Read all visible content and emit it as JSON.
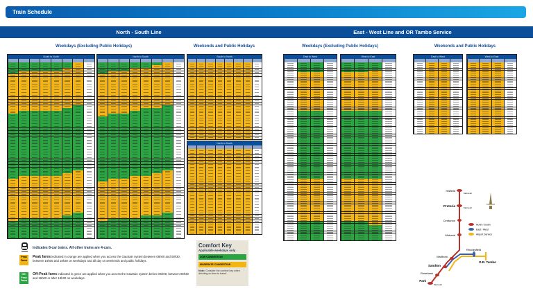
{
  "title": "Train Schedule",
  "lines": {
    "ns": "North - South Line",
    "ew": "East - West Line and OR Tambo Service"
  },
  "subheads": {
    "ns_weekdays": "Weekdays (Excluding Public Holidays)",
    "ns_weekends": "Weekends and Public Holidays",
    "ew_weekdays": "Weekdays (Excluding Public Holidays)",
    "ew_weekends": "Weekends and Public Holidays"
  },
  "colors": {
    "peak": "#f3b416",
    "offpeak": "#2aa542",
    "header": "#0b4f9b"
  },
  "tables": [
    {
      "id": "ns-wd-sn",
      "title": "South to North",
      "cols": 8,
      "rows": 62,
      "first": "g",
      "last": "w",
      "peaks": [
        [
          [
            4,
            18
          ],
          [
            41,
            56
          ]
        ],
        [
          [
            3,
            17
          ],
          [
            40,
            55
          ]
        ],
        [
          [
            3,
            17
          ],
          [
            40,
            55
          ]
        ],
        [
          [
            3,
            17
          ],
          [
            40,
            55
          ]
        ],
        [
          [
            3,
            17
          ],
          [
            40,
            55
          ]
        ],
        [
          [
            2,
            16
          ],
          [
            39,
            54
          ]
        ],
        [
          [
            0,
            15
          ],
          [
            38,
            53
          ]
        ],
        []
      ]
    },
    {
      "id": "ns-wd-ns",
      "title": "North to South",
      "cols": 8,
      "rows": 62,
      "first": "g",
      "last": "w",
      "peaks": [
        [
          [
            4,
            19
          ],
          [
            42,
            56
          ]
        ],
        [
          [
            3,
            18
          ],
          [
            41,
            55
          ]
        ],
        [
          [
            3,
            18
          ],
          [
            41,
            55
          ]
        ],
        [
          [
            2,
            17
          ],
          [
            40,
            55
          ]
        ],
        [
          [
            2,
            16
          ],
          [
            40,
            54
          ]
        ],
        [
          [
            1,
            16
          ],
          [
            39,
            54
          ]
        ],
        [
          [
            0,
            15
          ],
          [
            38,
            53
          ]
        ],
        []
      ]
    },
    {
      "id": "ns-we-sn",
      "title": "South to North",
      "cols": 8,
      "rows": 27,
      "first": "o",
      "last": "w",
      "peaks": [
        [
          [
            0,
            27
          ]
        ],
        [
          [
            0,
            27
          ]
        ],
        [
          [
            0,
            27
          ]
        ],
        [
          [
            0,
            27
          ]
        ],
        [
          [
            0,
            27
          ]
        ],
        [
          [
            0,
            27
          ]
        ],
        [
          [
            0,
            27
          ]
        ],
        []
      ]
    },
    {
      "id": "ns-we-ns",
      "title": "North to South",
      "cols": 8,
      "rows": 30,
      "first": "o",
      "last": "w",
      "peaks": [
        [
          [
            0,
            30
          ]
        ],
        [
          [
            0,
            30
          ]
        ],
        [
          [
            0,
            30
          ]
        ],
        [
          [
            0,
            30
          ]
        ],
        [
          [
            0,
            30
          ]
        ],
        [
          [
            0,
            30
          ]
        ],
        [
          [
            0,
            30
          ]
        ],
        []
      ]
    },
    {
      "id": "ew-wd-ew",
      "title": "East to West",
      "cols": 4,
      "rows": 92,
      "first": "w",
      "last": "w",
      "peaks": [
        [],
        [
          [
            5,
            25
          ],
          [
            60,
            82
          ]
        ],
        [
          [
            5,
            25
          ],
          [
            60,
            82
          ]
        ],
        []
      ],
      "green_cols": [
        1,
        2
      ]
    },
    {
      "id": "ew-wd-we",
      "title": "West to East",
      "cols": 4,
      "rows": 92,
      "first": "g",
      "last": "w",
      "peaks": [
        [
          [
            5,
            25
          ],
          [
            60,
            82
          ]
        ],
        [
          [
            5,
            25
          ],
          [
            60,
            82
          ]
        ],
        [
          [
            4,
            25
          ],
          [
            60,
            84
          ]
        ],
        []
      ]
    },
    {
      "id": "ew-we-ew",
      "title": "East to West",
      "cols": 4,
      "rows": 37,
      "first": "w",
      "last": "w",
      "peaks": [
        [],
        [
          [
            0,
            37
          ]
        ],
        [
          [
            0,
            37
          ]
        ],
        []
      ]
    },
    {
      "id": "ew-we-we",
      "title": "West to East",
      "cols": 4,
      "rows": 37,
      "first": "o",
      "last": "w",
      "peaks": [
        [
          [
            0,
            37
          ]
        ],
        [
          [
            0,
            37
          ]
        ],
        [
          [
            0,
            37
          ]
        ],
        []
      ]
    }
  ],
  "legend": {
    "eight_car": "Indicates 8-car trains. All other trains are 4-cars.",
    "peak_swatch": "Peak Fares",
    "peak_title": "Peak fares",
    "peak_text": "indicated in orange are applied when you access the Gautrain system between 06h00 and 08h30, between 16h00 and 18h30 on weekdays and all day on weekends and public holidays.",
    "off_swatch": "Off-Peak Fares",
    "off_title": "Off-Peak fares",
    "off_text": "indicated in green are applied when you access the Gautrain system before 06h00, between 08h30 and 16h00 or after 18h30 on weekdays."
  },
  "comfort": {
    "title": "Comfort Key",
    "subtitle": "Applicable weekdays only",
    "low": "LOW CONGESTION",
    "moderate": "MODERATE CONGESTION",
    "note_bold": "Note:",
    "note": "Consider the comfort key when deciding on time to travel."
  },
  "map": {
    "stations": {
      "hatfield": "Hatfield",
      "pretoria": "Pretoria",
      "centurion": "Centurion",
      "midrand": "Midrand",
      "marlboro": "Marlboro",
      "sandton": "Sandton",
      "rosebank": "Rosebank",
      "park": "Park",
      "rhodesfield": "Rhodesfield",
      "ortambo": "O.R. Tambo"
    },
    "metrorail": "Metrorail",
    "legend": {
      "ns": "North / South",
      "ew": "East / West",
      "airport": "Airport Service"
    },
    "colors": {
      "ns": "#b8312a",
      "ew": "#3a5fa8",
      "airport": "#f3b416"
    }
  }
}
